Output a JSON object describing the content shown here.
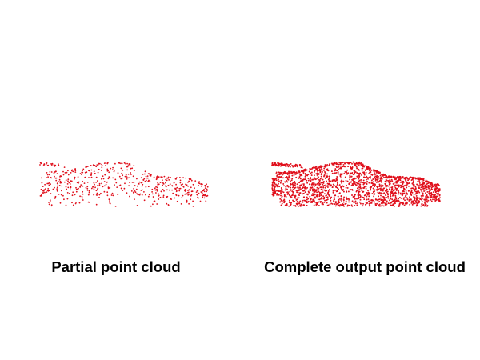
{
  "captions": {
    "partial": "Partial point cloud",
    "complete": "Complete output point cloud"
  },
  "colors": {
    "point": "#e0101c",
    "background": "#ffffff",
    "text": "#000000"
  },
  "clouds": {
    "partial": {
      "density": "sparse"
    },
    "complete": {
      "density": "dense"
    }
  }
}
